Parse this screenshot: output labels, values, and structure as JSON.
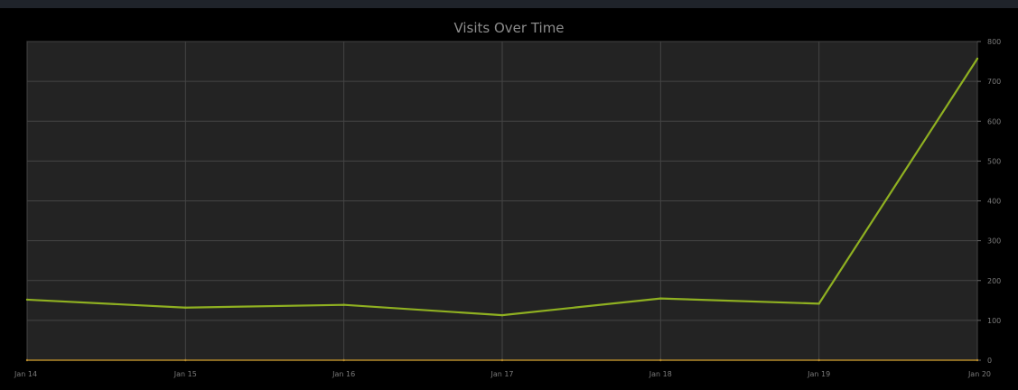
{
  "chart_data": {
    "type": "line",
    "title": "Visits Over Time",
    "xlabel": "",
    "ylabel": "",
    "categories": [
      "Jan 14",
      "Jan 15",
      "Jan 16",
      "Jan 17",
      "Jan 18",
      "Jan 19",
      "Jan 20"
    ],
    "series": [
      {
        "values": [
          152,
          132,
          139,
          113,
          155,
          142,
          757
        ],
        "color": "#8fb021"
      },
      {
        "values": [
          0,
          0,
          0,
          0,
          0,
          0,
          0
        ],
        "color": "#b5892a"
      }
    ],
    "ylim": [
      0,
      800
    ],
    "yticks": [
      0,
      100,
      200,
      300,
      400,
      500,
      600,
      700,
      800
    ],
    "y_axis_position": "right",
    "grid": true,
    "colors": {
      "plot_background": "#232323",
      "grid": "#444444",
      "frame": "#000000"
    }
  }
}
